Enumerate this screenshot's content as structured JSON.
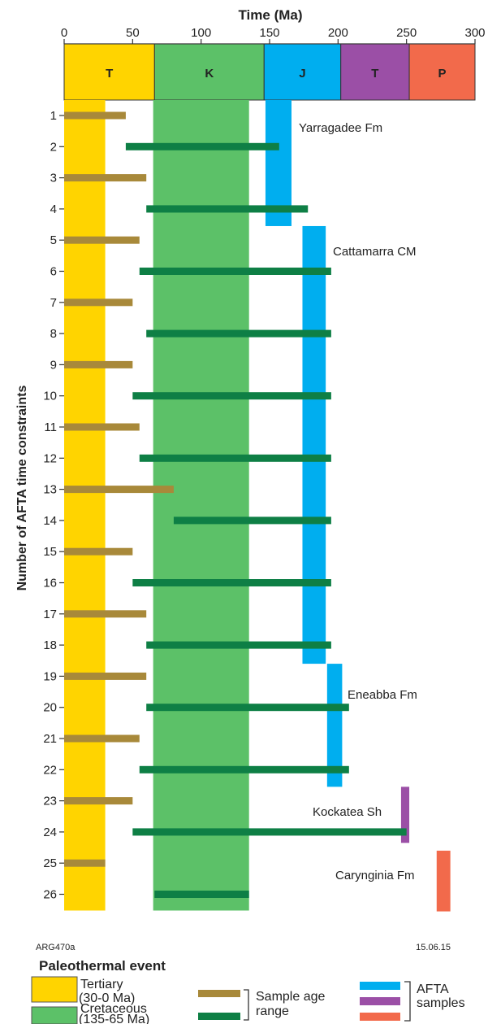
{
  "chart_data": {
    "type": "bar",
    "title": "Time (Ma)",
    "xlabel": "Time (Ma)",
    "ylabel": "Number of AFTA time constraints",
    "xlim": [
      0,
      300
    ],
    "xticks": [
      0,
      50,
      100,
      150,
      200,
      250,
      300
    ],
    "ylim": [
      1,
      26
    ],
    "periods": [
      {
        "label": "T",
        "start": 0,
        "end": 66,
        "color": "#FFD400"
      },
      {
        "label": "K",
        "start": 66,
        "end": 146,
        "color": "#5CC168"
      },
      {
        "label": "J",
        "start": 146,
        "end": 202,
        "color": "#00AEEF"
      },
      {
        "label": "T",
        "start": 202,
        "end": 252,
        "color": "#9B4FA6"
      },
      {
        "label": "P",
        "start": 252,
        "end": 300,
        "color": "#F26A4B"
      }
    ],
    "paleothermal_events": [
      {
        "name": "Tertiary",
        "range_label": "(30-0 Ma)",
        "start": 0,
        "end": 30,
        "color": "#FFD400"
      },
      {
        "name": "Cretaceous",
        "range_label": "(135-65 Ma)",
        "start": 65,
        "end": 135,
        "color": "#5CC168"
      }
    ],
    "constraints": [
      {
        "n": 1,
        "start": 0,
        "end": 45,
        "type": "tertiary"
      },
      {
        "n": 2,
        "start": 45,
        "end": 157,
        "type": "cretaceous"
      },
      {
        "n": 3,
        "start": 0,
        "end": 60,
        "type": "tertiary"
      },
      {
        "n": 4,
        "start": 60,
        "end": 178,
        "type": "cretaceous"
      },
      {
        "n": 5,
        "start": 0,
        "end": 55,
        "type": "tertiary"
      },
      {
        "n": 6,
        "start": 55,
        "end": 195,
        "type": "cretaceous"
      },
      {
        "n": 7,
        "start": 0,
        "end": 50,
        "type": "tertiary"
      },
      {
        "n": 8,
        "start": 60,
        "end": 195,
        "type": "cretaceous"
      },
      {
        "n": 9,
        "start": 0,
        "end": 50,
        "type": "tertiary"
      },
      {
        "n": 10,
        "start": 50,
        "end": 195,
        "type": "cretaceous"
      },
      {
        "n": 11,
        "start": 0,
        "end": 55,
        "type": "tertiary"
      },
      {
        "n": 12,
        "start": 55,
        "end": 195,
        "type": "cretaceous"
      },
      {
        "n": 13,
        "start": 0,
        "end": 80,
        "type": "tertiary"
      },
      {
        "n": 14,
        "start": 80,
        "end": 195,
        "type": "cretaceous"
      },
      {
        "n": 15,
        "start": 0,
        "end": 50,
        "type": "tertiary"
      },
      {
        "n": 16,
        "start": 50,
        "end": 195,
        "type": "cretaceous"
      },
      {
        "n": 17,
        "start": 0,
        "end": 60,
        "type": "tertiary"
      },
      {
        "n": 18,
        "start": 60,
        "end": 195,
        "type": "cretaceous"
      },
      {
        "n": 19,
        "start": 0,
        "end": 60,
        "type": "tertiary"
      },
      {
        "n": 20,
        "start": 60,
        "end": 208,
        "type": "cretaceous"
      },
      {
        "n": 21,
        "start": 0,
        "end": 55,
        "type": "tertiary"
      },
      {
        "n": 22,
        "start": 55,
        "end": 208,
        "type": "cretaceous"
      },
      {
        "n": 23,
        "start": 0,
        "end": 50,
        "type": "tertiary"
      },
      {
        "n": 24,
        "start": 50,
        "end": 250,
        "type": "cretaceous"
      },
      {
        "n": 25,
        "start": 0,
        "end": 30,
        "type": "tertiary"
      },
      {
        "n": 26,
        "start": 66,
        "end": 135,
        "type": "cretaceous"
      }
    ],
    "afta_samples": [
      {
        "name": "Yarragadee Fm",
        "start": 147,
        "end": 166,
        "row_from": 0.8,
        "row_to": 4.55,
        "color": "#00AEEF"
      },
      {
        "name": "Cattamarra CM",
        "start": 174,
        "end": 191,
        "row_from": 4.55,
        "row_to": 18.6,
        "color": "#00AEEF"
      },
      {
        "name": "Eneabba Fm",
        "start": 192,
        "end": 203,
        "row_from": 18.6,
        "row_to": 22.55,
        "color": "#00AEEF"
      },
      {
        "name": "Kockatea Sh",
        "start": 246,
        "end": 252,
        "row_from": 22.55,
        "row_to": 24.35,
        "color": "#9B4FA6"
      },
      {
        "name": "Carynginia Fm",
        "start": 272,
        "end": 282,
        "row_from": 24.6,
        "row_to": 26.55,
        "color": "#F26A4B"
      }
    ],
    "colors": {
      "tertiary_range": "#A8893A",
      "cretaceous_range": "#0E7F45"
    },
    "code_left": "ARG470a",
    "code_right": "15.06.15"
  },
  "legend": {
    "paleothermal_title": "Paleothermal event",
    "tertiary_line1": "Tertiary",
    "tertiary_line2": "(30-0 Ma)",
    "cretaceous_line1": "Cretaceous",
    "cretaceous_line2": "(135-65 Ma)",
    "sample_range_line1": "Sample age",
    "sample_range_line2": "range",
    "afta_line1": "AFTA",
    "afta_line2": "samples"
  }
}
